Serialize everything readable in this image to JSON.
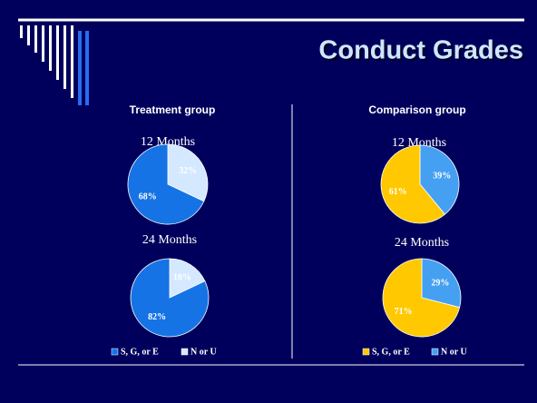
{
  "title": "Conduct Grades",
  "groups": [
    "Treatment group",
    "Comparison group"
  ],
  "chart_data": [
    {
      "type": "pie",
      "title": "12 Months",
      "categories": [
        "S, G, or E",
        "N or U"
      ],
      "values": [
        68,
        32
      ],
      "value_labels": [
        "68%",
        "32%"
      ],
      "colors": [
        "#1573e6",
        "#d4e8ff"
      ]
    },
    {
      "type": "pie",
      "title": "24 Months",
      "categories": [
        "S, G, or E",
        "N or U"
      ],
      "values": [
        82,
        18
      ],
      "value_labels": [
        "82%",
        "18%"
      ],
      "colors": [
        "#1573e6",
        "#d4e8ff"
      ]
    },
    {
      "type": "pie",
      "title": "12 Months",
      "categories": [
        "S, G, or E",
        "N or U"
      ],
      "values": [
        61,
        39
      ],
      "value_labels": [
        "61%",
        "39%"
      ],
      "colors": [
        "#ffc800",
        "#46a0f2"
      ]
    },
    {
      "type": "pie",
      "title": "24 Months",
      "categories": [
        "S, G, or E",
        "N or U"
      ],
      "values": [
        71,
        29
      ],
      "value_labels": [
        "71%",
        "29%"
      ],
      "colors": [
        "#ffc800",
        "#46a0f2"
      ]
    }
  ]
}
